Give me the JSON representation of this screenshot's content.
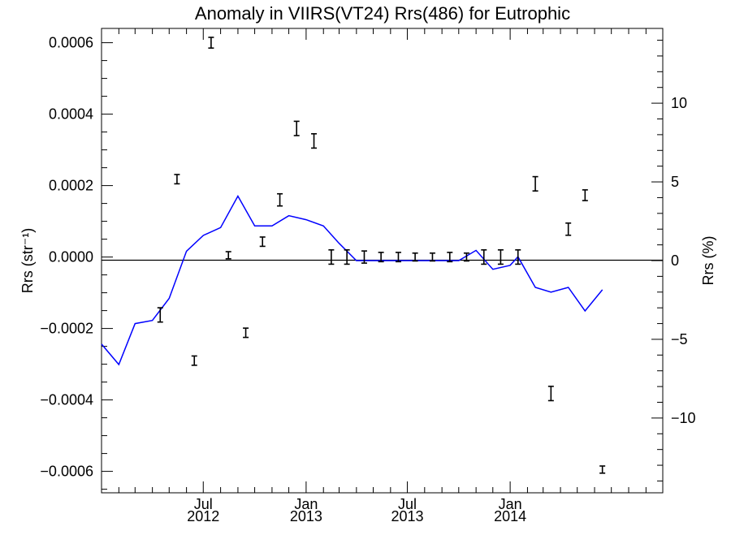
{
  "chart_data": {
    "type": "scatter",
    "title": "Anomaly in VIIRS(VT24) Rrs(486) for Eutrophic",
    "xlabel": "",
    "ylabel_left": "Rrs (str⁻¹)",
    "ylabel_right": "Rrs (%)",
    "x_range": [
      "2012-01-01",
      "2014-10-01"
    ],
    "ylim_left": [
      -0.00066,
      0.00064
    ],
    "ylim_right": [
      -14.75,
      14.75
    ],
    "left_ticks": [
      {
        "value": 0.0006,
        "label": "0.0006"
      },
      {
        "value": 0.0004,
        "label": "0.0004"
      },
      {
        "value": 0.0002,
        "label": "0.0002"
      },
      {
        "value": 0.0,
        "label": "0.0000"
      },
      {
        "value": -0.0002,
        "label": "−0.0002"
      },
      {
        "value": -0.0004,
        "label": "−0.0004"
      },
      {
        "value": -0.0006,
        "label": "−0.0006"
      }
    ],
    "right_ticks": [
      {
        "value": 10,
        "label": "10"
      },
      {
        "value": 5,
        "label": "5"
      },
      {
        "value": 0,
        "label": "0"
      },
      {
        "value": -5,
        "label": "−5"
      },
      {
        "value": -10,
        "label": "−10"
      }
    ],
    "x_ticks": [
      {
        "date": "2012-07-01",
        "month": "Jul",
        "year": "2012"
      },
      {
        "date": "2013-01-01",
        "month": "Jan",
        "year": "2013"
      },
      {
        "date": "2013-07-01",
        "month": "Jul",
        "year": "2013"
      },
      {
        "date": "2014-01-01",
        "month": "Jan",
        "year": "2014"
      }
    ],
    "zero_line": true,
    "series": [
      {
        "kind": "errorbar",
        "axis": "left",
        "color": "#000000",
        "points": [
          {
            "x": "2012-04-15",
            "y": -0.000162,
            "err": 2e-05
          },
          {
            "x": "2012-05-15",
            "y": 0.000218,
            "err": 1.3e-05
          },
          {
            "x": "2012-06-15",
            "y": -0.00029,
            "err": 1.3e-05
          },
          {
            "x": "2012-07-15",
            "y": 0.0006,
            "err": 1.5e-05
          },
          {
            "x": "2012-08-15",
            "y": 5e-06,
            "err": 1e-05
          },
          {
            "x": "2012-09-15",
            "y": -0.000212,
            "err": 1.3e-05
          },
          {
            "x": "2012-10-15",
            "y": 4.3e-05,
            "err": 1.3e-05
          },
          {
            "x": "2012-11-15",
            "y": 0.00016,
            "err": 1.7e-05
          },
          {
            "x": "2012-12-15",
            "y": 0.00036,
            "err": 2e-05
          },
          {
            "x": "2013-01-15",
            "y": 0.000325,
            "err": 2e-05
          },
          {
            "x": "2013-02-15",
            "y": 0.0,
            "err": 2e-05
          },
          {
            "x": "2013-03-15",
            "y": 0.0,
            "err": 2e-05
          },
          {
            "x": "2013-04-15",
            "y": 0.0,
            "err": 1.7e-05
          },
          {
            "x": "2013-05-15",
            "y": 0.0,
            "err": 1.3e-05
          },
          {
            "x": "2013-06-15",
            "y": 0.0,
            "err": 1.3e-05
          },
          {
            "x": "2013-07-15",
            "y": 0.0,
            "err": 1.1e-05
          },
          {
            "x": "2013-08-15",
            "y": 0.0,
            "err": 1.1e-05
          },
          {
            "x": "2013-09-15",
            "y": 0.0,
            "err": 1.3e-05
          },
          {
            "x": "2013-10-15",
            "y": 0.0,
            "err": 1.1e-05
          },
          {
            "x": "2013-11-15",
            "y": 0.0,
            "err": 2e-05
          },
          {
            "x": "2013-12-15",
            "y": 0.0,
            "err": 2e-05
          },
          {
            "x": "2014-01-15",
            "y": 0.0,
            "err": 2e-05
          },
          {
            "x": "2014-02-15",
            "y": 0.000205,
            "err": 2e-05
          },
          {
            "x": "2014-03-15",
            "y": -0.000382,
            "err": 2e-05
          },
          {
            "x": "2014-04-15",
            "y": 7.8e-05,
            "err": 1.7e-05
          },
          {
            "x": "2014-05-15",
            "y": 0.000173,
            "err": 1.5e-05
          },
          {
            "x": "2014-06-15",
            "y": -0.000595,
            "err": 1e-05
          }
        ]
      },
      {
        "kind": "line",
        "axis": "right",
        "color": "#0000ff",
        "points": [
          {
            "x": "2012-01-01",
            "y": -5.3
          },
          {
            "x": "2012-02-01",
            "y": -6.6
          },
          {
            "x": "2012-03-01",
            "y": -4.0
          },
          {
            "x": "2012-04-01",
            "y": -3.8
          },
          {
            "x": "2012-05-01",
            "y": -2.4
          },
          {
            "x": "2012-06-01",
            "y": 0.6
          },
          {
            "x": "2012-07-01",
            "y": 1.6
          },
          {
            "x": "2012-08-01",
            "y": 2.1
          },
          {
            "x": "2012-09-01",
            "y": 4.1
          },
          {
            "x": "2012-10-01",
            "y": 2.2
          },
          {
            "x": "2012-11-01",
            "y": 2.2
          },
          {
            "x": "2012-12-01",
            "y": 2.85
          },
          {
            "x": "2013-01-01",
            "y": 2.6
          },
          {
            "x": "2013-02-01",
            "y": 2.2
          },
          {
            "x": "2013-03-01",
            "y": 1.1
          },
          {
            "x": "2013-04-01",
            "y": 0.0
          },
          {
            "x": "2013-05-01",
            "y": 0.0
          },
          {
            "x": "2013-06-01",
            "y": 0.0
          },
          {
            "x": "2013-07-01",
            "y": 0.0
          },
          {
            "x": "2013-08-01",
            "y": 0.0
          },
          {
            "x": "2013-09-01",
            "y": 0.0
          },
          {
            "x": "2013-10-01",
            "y": 0.0
          },
          {
            "x": "2013-11-01",
            "y": 0.65
          },
          {
            "x": "2013-12-01",
            "y": -0.55
          },
          {
            "x": "2014-01-01",
            "y": -0.3
          },
          {
            "x": "2014-01-15",
            "y": 0.25
          },
          {
            "x": "2014-02-15",
            "y": -1.7
          },
          {
            "x": "2014-03-15",
            "y": -2.0
          },
          {
            "x": "2014-04-15",
            "y": -1.7
          },
          {
            "x": "2014-05-15",
            "y": -3.2
          },
          {
            "x": "2014-06-15",
            "y": -1.85
          }
        ]
      }
    ]
  }
}
